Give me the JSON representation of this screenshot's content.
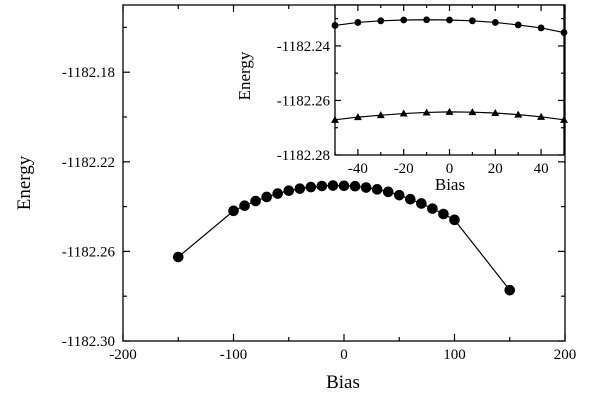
{
  "chart_data": [
    {
      "type": "scatter",
      "xlabel": "Bias",
      "ylabel": "Energy",
      "xlim": [
        -200,
        200
      ],
      "ylim": [
        -1182.3,
        -1182.15
      ],
      "xticks": [
        "-200",
        "-100",
        "0",
        "100",
        "200"
      ],
      "yticks": [
        "-1182.30",
        "-1182.26",
        "-1182.22",
        "-1182.18"
      ],
      "series": [
        {
          "marker": "circle",
          "line": true,
          "x": [
            -150,
            -100,
            -90,
            -80,
            -70,
            -60,
            -50,
            -40,
            -30,
            -20,
            -10,
            0,
            10,
            20,
            30,
            40,
            50,
            60,
            70,
            80,
            90,
            100,
            150
          ],
          "y": [
            -1182.2625,
            -1182.2419,
            -1182.2396,
            -1182.2375,
            -1182.2357,
            -1182.2342,
            -1182.2329,
            -1182.232,
            -1182.2313,
            -1182.2308,
            -1182.2306,
            -1182.2307,
            -1182.2309,
            -1182.2315,
            -1182.2323,
            -1182.2334,
            -1182.2349,
            -1182.2367,
            -1182.2386,
            -1182.2409,
            -1182.2433,
            -1182.2459,
            -1182.2773
          ]
        }
      ]
    },
    {
      "type": "scatter",
      "xlabel": "Bias",
      "ylabel": "Energy",
      "xlim": [
        -50,
        50
      ],
      "ylim": [
        -1182.28,
        -1182.225
      ],
      "xticks": [
        "-40",
        "-20",
        "0",
        "20",
        "40"
      ],
      "yticks": [
        "-1182.28",
        "-1182.26",
        "-1182.24"
      ],
      "series": [
        {
          "marker": "circle",
          "line": true,
          "x": [
            -50,
            -40,
            -30,
            -20,
            -10,
            0,
            10,
            20,
            30,
            40,
            50
          ],
          "y": [
            -1182.2325,
            -1182.2314,
            -1182.2308,
            -1182.2305,
            -1182.2304,
            -1182.2305,
            -1182.2308,
            -1182.2314,
            -1182.2323,
            -1182.2334,
            -1182.2351
          ]
        },
        {
          "marker": "triangle",
          "line": true,
          "x": [
            -50,
            -40,
            -30,
            -20,
            -10,
            0,
            10,
            20,
            30,
            40,
            50
          ],
          "y": [
            -1182.2671,
            -1182.2661,
            -1182.2654,
            -1182.2648,
            -1182.2644,
            -1182.2642,
            -1182.2643,
            -1182.2646,
            -1182.2652,
            -1182.266,
            -1182.2671
          ]
        }
      ]
    }
  ]
}
